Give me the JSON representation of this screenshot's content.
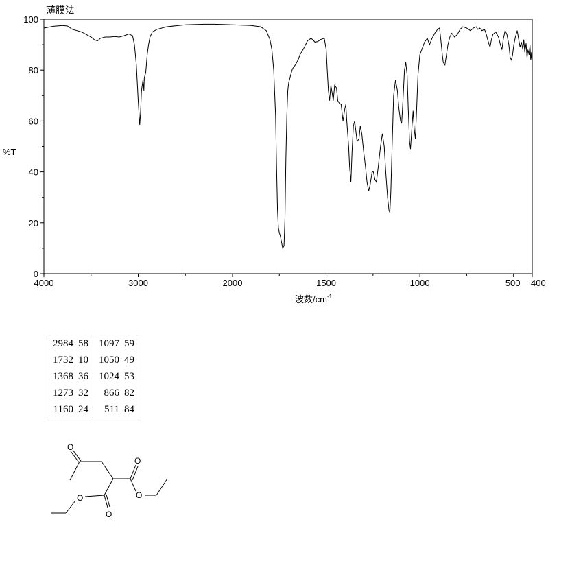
{
  "chart_data": {
    "type": "line",
    "title": "薄膜法",
    "xlabel": "波数/cm",
    "xlabel_sup": "-1",
    "ylabel": "%T",
    "xlim": [
      4000,
      400
    ],
    "ylim": [
      0,
      100
    ],
    "x_ticks": [
      4000,
      3000,
      2000,
      1500,
      1000,
      500,
      400
    ],
    "x_tick_labels": [
      "4000",
      "3000",
      "2000",
      "1500",
      "1000",
      "500",
      "400"
    ],
    "y_ticks": [
      0,
      20,
      40,
      60,
      80,
      100
    ],
    "y_tick_labels": [
      "0",
      "20",
      "40",
      "60",
      "80",
      "100"
    ],
    "series": [
      {
        "values": [
          [
            4000,
            96.5
          ],
          [
            3900,
            97.2
          ],
          [
            3800,
            97.5
          ],
          [
            3750,
            97.3
          ],
          [
            3700,
            96.0
          ],
          [
            3650,
            95.5
          ],
          [
            3600,
            95.0
          ],
          [
            3550,
            94.0
          ],
          [
            3500,
            93.0
          ],
          [
            3460,
            91.8
          ],
          [
            3430,
            91.5
          ],
          [
            3400,
            92.5
          ],
          [
            3350,
            93.0
          ],
          [
            3300,
            93.0
          ],
          [
            3250,
            93.2
          ],
          [
            3200,
            93.0
          ],
          [
            3150,
            93.5
          ],
          [
            3100,
            94.2
          ],
          [
            3060,
            93.5
          ],
          [
            3040,
            90.0
          ],
          [
            3020,
            82.0
          ],
          [
            3000,
            68.0
          ],
          [
            2990,
            62.0
          ],
          [
            2984,
            58.5
          ],
          [
            2975,
            63.0
          ],
          [
            2965,
            72.0
          ],
          [
            2950,
            76.0
          ],
          [
            2940,
            72.0
          ],
          [
            2935,
            77.0
          ],
          [
            2920,
            79.0
          ],
          [
            2905,
            86.0
          ],
          [
            2890,
            90.0
          ],
          [
            2875,
            93.0
          ],
          [
            2850,
            95.0
          ],
          [
            2800,
            96.0
          ],
          [
            2700,
            97.0
          ],
          [
            2500,
            97.8
          ],
          [
            2300,
            98.0
          ],
          [
            2200,
            98.0
          ],
          [
            2100,
            97.9
          ],
          [
            2000,
            97.8
          ],
          [
            1900,
            97.5
          ],
          [
            1850,
            97.0
          ],
          [
            1820,
            95.5
          ],
          [
            1800,
            92.0
          ],
          [
            1790,
            88.0
          ],
          [
            1780,
            80.0
          ],
          [
            1770,
            62.0
          ],
          [
            1765,
            42.0
          ],
          [
            1760,
            25.0
          ],
          [
            1755,
            18.0
          ],
          [
            1750,
            16.0
          ],
          [
            1745,
            15.0
          ],
          [
            1740,
            13.0
          ],
          [
            1732,
            10.0
          ],
          [
            1725,
            11.0
          ],
          [
            1720,
            22.0
          ],
          [
            1715,
            45.0
          ],
          [
            1710,
            62.0
          ],
          [
            1705,
            72.0
          ],
          [
            1700,
            75.0
          ],
          [
            1690,
            78.0
          ],
          [
            1680,
            80.5
          ],
          [
            1665,
            82.0
          ],
          [
            1650,
            84.0
          ],
          [
            1640,
            86.0
          ],
          [
            1620,
            88.5
          ],
          [
            1600,
            91.5
          ],
          [
            1580,
            92.5
          ],
          [
            1560,
            91.0
          ],
          [
            1545,
            91.2
          ],
          [
            1530,
            92.0
          ],
          [
            1510,
            92.5
          ],
          [
            1500,
            88.0
          ],
          [
            1495,
            81.0
          ],
          [
            1488,
            72.0
          ],
          [
            1482,
            68.0
          ],
          [
            1475,
            74.0
          ],
          [
            1468,
            71.0
          ],
          [
            1462,
            68.0
          ],
          [
            1455,
            74.0
          ],
          [
            1445,
            73.0
          ],
          [
            1438,
            68.0
          ],
          [
            1430,
            67.0
          ],
          [
            1420,
            66.5
          ],
          [
            1410,
            60.0
          ],
          [
            1400,
            65.0
          ],
          [
            1395,
            66.5
          ],
          [
            1390,
            60.0
          ],
          [
            1380,
            50.0
          ],
          [
            1375,
            42.0
          ],
          [
            1368,
            36.0
          ],
          [
            1362,
            48.0
          ],
          [
            1355,
            58.0
          ],
          [
            1348,
            60.0
          ],
          [
            1340,
            55.0
          ],
          [
            1335,
            52.0
          ],
          [
            1325,
            53.0
          ],
          [
            1318,
            58.0
          ],
          [
            1310,
            55.0
          ],
          [
            1300,
            48.0
          ],
          [
            1290,
            42.0
          ],
          [
            1282,
            36.0
          ],
          [
            1273,
            32.5
          ],
          [
            1265,
            35.0
          ],
          [
            1255,
            40.0
          ],
          [
            1248,
            40.0
          ],
          [
            1240,
            37.0
          ],
          [
            1232,
            36.0
          ],
          [
            1222,
            42.0
          ],
          [
            1210,
            50.0
          ],
          [
            1200,
            55.0
          ],
          [
            1190,
            50.0
          ],
          [
            1182,
            40.0
          ],
          [
            1172,
            30.0
          ],
          [
            1165,
            25.0
          ],
          [
            1160,
            24.0
          ],
          [
            1155,
            32.0
          ],
          [
            1148,
            50.0
          ],
          [
            1140,
            70.0
          ],
          [
            1130,
            76.0
          ],
          [
            1120,
            72.0
          ],
          [
            1112,
            65.0
          ],
          [
            1103,
            60.0
          ],
          [
            1097,
            59.0
          ],
          [
            1090,
            68.0
          ],
          [
            1082,
            80.0
          ],
          [
            1075,
            83.0
          ],
          [
            1068,
            78.0
          ],
          [
            1062,
            65.0
          ],
          [
            1055,
            52.0
          ],
          [
            1050,
            49.0
          ],
          [
            1042,
            58.0
          ],
          [
            1036,
            64.0
          ],
          [
            1030,
            57.0
          ],
          [
            1024,
            53.0
          ],
          [
            1017,
            65.0
          ],
          [
            1010,
            78.0
          ],
          [
            1000,
            86.0
          ],
          [
            990,
            88.0
          ],
          [
            975,
            91.0
          ],
          [
            960,
            92.5
          ],
          [
            948,
            90.0
          ],
          [
            935,
            92.5
          ],
          [
            920,
            94.5
          ],
          [
            905,
            96.0
          ],
          [
            895,
            96.5
          ],
          [
            888,
            92.0
          ],
          [
            880,
            86.0
          ],
          [
            875,
            83.0
          ],
          [
            866,
            82.0
          ],
          [
            858,
            86.0
          ],
          [
            850,
            90.0
          ],
          [
            840,
            93.0
          ],
          [
            830,
            94.5
          ],
          [
            815,
            93.0
          ],
          [
            800,
            94.0
          ],
          [
            785,
            96.0
          ],
          [
            770,
            97.0
          ],
          [
            750,
            96.5
          ],
          [
            730,
            95.5
          ],
          [
            715,
            96.5
          ],
          [
            700,
            97.0
          ],
          [
            690,
            96.0
          ],
          [
            680,
            96.5
          ],
          [
            668,
            95.5
          ],
          [
            655,
            96.0
          ],
          [
            645,
            94.0
          ],
          [
            638,
            92.0
          ],
          [
            630,
            90.0
          ],
          [
            625,
            89.0
          ],
          [
            618,
            92.0
          ],
          [
            610,
            94.0
          ],
          [
            595,
            95.0
          ],
          [
            580,
            93.0
          ],
          [
            570,
            90.0
          ],
          [
            562,
            88.0
          ],
          [
            555,
            92.0
          ],
          [
            545,
            95.5
          ],
          [
            535,
            94.0
          ],
          [
            525,
            90.0
          ],
          [
            518,
            85.0
          ],
          [
            511,
            84.0
          ],
          [
            505,
            86.0
          ],
          [
            498,
            90.0
          ],
          [
            490,
            93.0
          ],
          [
            480,
            95.5
          ],
          [
            472,
            92.0
          ],
          [
            465,
            89.0
          ],
          [
            458,
            91.0
          ],
          [
            450,
            88.0
          ],
          [
            445,
            92.0
          ],
          [
            440,
            87.0
          ],
          [
            433,
            90.5
          ],
          [
            428,
            85.0
          ],
          [
            423,
            88.0
          ],
          [
            417,
            86.0
          ],
          [
            412,
            90.0
          ],
          [
            408,
            84.0
          ],
          [
            404,
            87.0
          ],
          [
            400,
            81.0
          ]
        ]
      }
    ]
  },
  "peak_table": {
    "rows": [
      [
        [
          "2984",
          "58"
        ],
        [
          "1097",
          "59"
        ]
      ],
      [
        [
          "1732",
          "10"
        ],
        [
          "1050",
          "49"
        ]
      ],
      [
        [
          "1368",
          "36"
        ],
        [
          "1024",
          "53"
        ]
      ],
      [
        [
          "1273",
          "32"
        ],
        [
          "866",
          "82"
        ]
      ],
      [
        [
          "1160",
          "24"
        ],
        [
          "511",
          "84"
        ]
      ]
    ]
  },
  "structure": {
    "atom_labels": [
      "O",
      "O",
      "O",
      "O",
      "O"
    ]
  }
}
